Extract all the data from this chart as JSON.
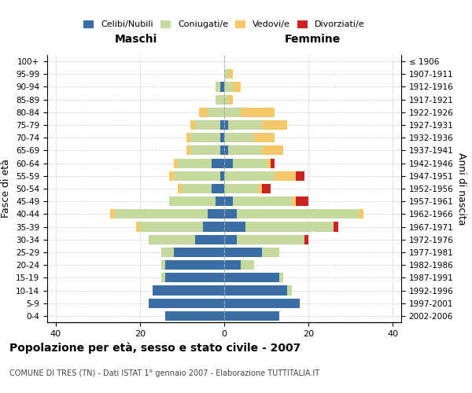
{
  "age_groups": [
    "0-4",
    "5-9",
    "10-14",
    "15-19",
    "20-24",
    "25-29",
    "30-34",
    "35-39",
    "40-44",
    "45-49",
    "50-54",
    "55-59",
    "60-64",
    "65-69",
    "70-74",
    "75-79",
    "80-84",
    "85-89",
    "90-94",
    "95-99",
    "100+"
  ],
  "birth_years": [
    "2002-2006",
    "1997-2001",
    "1992-1996",
    "1987-1991",
    "1982-1986",
    "1977-1981",
    "1972-1976",
    "1967-1971",
    "1962-1966",
    "1957-1961",
    "1952-1956",
    "1947-1951",
    "1942-1946",
    "1937-1941",
    "1932-1936",
    "1927-1931",
    "1922-1926",
    "1917-1921",
    "1912-1916",
    "1907-1911",
    "≤ 1906"
  ],
  "maschi": {
    "celibi": [
      14,
      18,
      17,
      14,
      14,
      12,
      7,
      5,
      4,
      2,
      3,
      1,
      3,
      1,
      1,
      1,
      0,
      0,
      1,
      0,
      0
    ],
    "coniugati": [
      0,
      0,
      0,
      1,
      1,
      3,
      11,
      15,
      22,
      11,
      7,
      11,
      8,
      7,
      7,
      6,
      4,
      2,
      1,
      0,
      0
    ],
    "vedovi": [
      0,
      0,
      0,
      0,
      0,
      0,
      0,
      1,
      1,
      0,
      1,
      1,
      1,
      1,
      1,
      1,
      2,
      0,
      0,
      0,
      0
    ],
    "divorziati": [
      0,
      0,
      0,
      0,
      0,
      0,
      0,
      0,
      0,
      0,
      0,
      0,
      0,
      0,
      0,
      0,
      0,
      0,
      0,
      0,
      0
    ]
  },
  "femmine": {
    "nubili": [
      13,
      18,
      15,
      13,
      4,
      9,
      3,
      5,
      3,
      2,
      0,
      0,
      2,
      1,
      0,
      1,
      0,
      0,
      0,
      0,
      0
    ],
    "coniugate": [
      0,
      0,
      1,
      1,
      3,
      4,
      16,
      21,
      29,
      14,
      8,
      12,
      8,
      8,
      7,
      8,
      4,
      1,
      2,
      1,
      0
    ],
    "vedove": [
      0,
      0,
      0,
      0,
      0,
      0,
      0,
      0,
      1,
      1,
      1,
      5,
      1,
      5,
      5,
      6,
      8,
      1,
      2,
      1,
      0
    ],
    "divorziate": [
      0,
      0,
      0,
      0,
      0,
      0,
      1,
      1,
      0,
      3,
      2,
      2,
      1,
      0,
      0,
      0,
      0,
      0,
      0,
      0,
      0
    ]
  },
  "colors": {
    "celibi_nubili": "#3a6ea5",
    "coniugati": "#c5d89d",
    "vedovi": "#f5c96a",
    "divorziati": "#cc2222"
  },
  "xlim": 42,
  "title": "Popolazione per età, sesso e stato civile - 2007",
  "subtitle": "COMUNE DI TRES (TN) - Dati ISTAT 1° gennaio 2007 - Elaborazione TUTTITALIA.IT",
  "ylabel_left": "Fasce di età",
  "ylabel_right": "Anni di nascita",
  "xlabel_maschi": "Maschi",
  "xlabel_femmine": "Femmine",
  "background_color": "#ffffff",
  "grid_color": "#cccccc"
}
